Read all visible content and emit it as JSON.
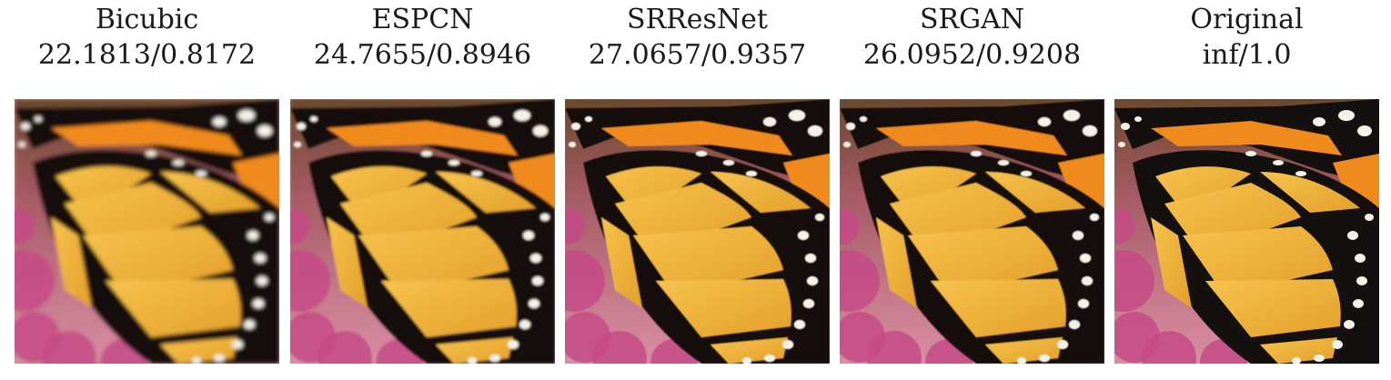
{
  "figure": {
    "panels": [
      {
        "method": "Bicubic",
        "metrics": "22.1813/0.8172",
        "blur": 2.2
      },
      {
        "method": "ESPCN",
        "metrics": "24.7655/0.8946",
        "blur": 1.3
      },
      {
        "method": "SRResNet",
        "metrics": "27.0657/0.9357",
        "blur": 0.6
      },
      {
        "method": "SRGAN",
        "metrics": "26.0952/0.9208",
        "blur": 0.5
      },
      {
        "method": "Original",
        "metrics": "inf/1.0",
        "blur": 0
      }
    ],
    "colors": {
      "background_top": "#6b4a2c",
      "flower_pink": "#c64a86",
      "flower_soft": "#d98fa3",
      "wing_yellow": "#f0b73b",
      "wing_orange": "#f08a1c",
      "vein_black": "#141010",
      "spot_white": "#f4f1e6"
    }
  }
}
